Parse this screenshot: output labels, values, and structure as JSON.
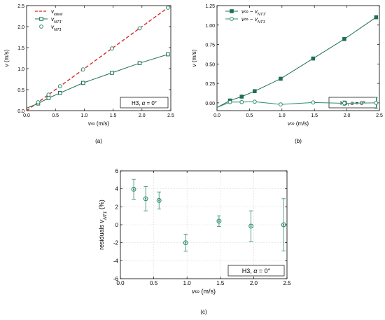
{
  "colors": {
    "model": "#2e8b6e",
    "ideal": "#d62828",
    "dark": "#1f6f56"
  },
  "chart_data": [
    {
      "id": "a",
      "type": "line",
      "caption": "(a)",
      "xlabel": "v∞ (m/s)",
      "ylabel": "v (m/s)",
      "xlim": [
        0,
        2.5
      ],
      "ylim": [
        0,
        2.5
      ],
      "xticks": [
        "0.0",
        "0.5",
        "1.0",
        "1.5",
        "2.0",
        "2.5"
      ],
      "yticks": [
        "0.0",
        "0.5",
        "1.0",
        "1.5",
        "2.0",
        "2.5"
      ],
      "annotation": "H3, α = 0°",
      "legend_position": "top-left",
      "series": [
        {
          "name": "videal",
          "style": "dashed",
          "x": [
            0,
            2.5
          ],
          "y": [
            0,
            2.5
          ]
        },
        {
          "name": "vNT1'",
          "style": "solid-square",
          "x": [
            0.2,
            0.38,
            0.58,
            0.98,
            1.48,
            1.96,
            2.45
          ],
          "y": [
            0.17,
            0.3,
            0.42,
            0.66,
            0.9,
            1.13,
            1.34
          ]
        },
        {
          "name": "vNT1",
          "style": "circle",
          "x": [
            0.2,
            0.38,
            0.58,
            0.98,
            1.48,
            1.96,
            2.45
          ],
          "y": [
            0.2,
            0.38,
            0.58,
            0.98,
            1.48,
            1.96,
            2.45
          ]
        }
      ]
    },
    {
      "id": "b",
      "type": "line",
      "caption": "(b)",
      "xlabel": "v∞ (m/s)",
      "ylabel": "v (m/s)",
      "xlim": [
        0,
        2.5
      ],
      "ylim": [
        -0.1,
        1.25
      ],
      "xticks": [
        "0.0",
        "0.5",
        "1.0",
        "1.5",
        "2.0",
        "2.5"
      ],
      "yticks": [
        "0.00",
        "0.25",
        "0.50",
        "0.75",
        "1.00",
        "1.25"
      ],
      "annotation": "H3, α = 0°",
      "legend_position": "top-left",
      "series": [
        {
          "name": "v∞ − vNT1'",
          "style": "solid-square",
          "x": [
            0,
            0.2,
            0.38,
            0.58,
            0.98,
            1.48,
            1.96,
            2.45
          ],
          "y": [
            -0.06,
            0.03,
            0.08,
            0.15,
            0.31,
            0.57,
            0.82,
            1.1
          ]
        },
        {
          "name": "v∞ − vNT1",
          "style": "solid-circle",
          "x": [
            0,
            0.2,
            0.38,
            0.58,
            0.98,
            1.48,
            1.96,
            2.45
          ],
          "y": [
            -0.06,
            0.01,
            0.01,
            0.015,
            -0.02,
            0.005,
            -0.005,
            0.0
          ],
          "yerr": [
            0,
            0,
            0,
            0,
            0,
            0,
            0.03,
            0.07
          ]
        }
      ]
    },
    {
      "id": "c",
      "type": "scatter",
      "caption": "(c)",
      "xlabel": "v∞ (m/s)",
      "ylabel": "residuals vNT1 (%)",
      "xlim": [
        0,
        2.5
      ],
      "ylim": [
        -6,
        6
      ],
      "xticks": [
        "0.0",
        "0.5",
        "1.0",
        "1.5",
        "2.0",
        "2.5"
      ],
      "yticks": [
        "-6",
        "-4",
        "-2",
        "0",
        "2",
        "4",
        "6"
      ],
      "annotation": "H3, α = 0°",
      "grid": true,
      "series": [
        {
          "name": "residuals",
          "x": [
            0.2,
            0.38,
            0.58,
            0.98,
            1.48,
            1.96,
            2.45
          ],
          "y": [
            3.95,
            2.9,
            2.7,
            -2.0,
            0.4,
            -0.15,
            0.0
          ],
          "yerr": [
            1.1,
            1.35,
            0.95,
            0.95,
            0.6,
            1.7,
            2.9
          ]
        }
      ]
    }
  ]
}
